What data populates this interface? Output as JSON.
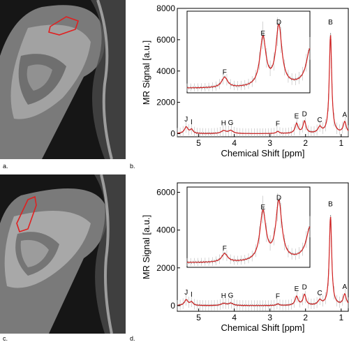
{
  "panels": {
    "a": {
      "label": "a."
    },
    "b": {
      "label": "b."
    },
    "c": {
      "label": "c."
    },
    "d": {
      "label": "d."
    }
  },
  "colors": {
    "fit": "#d21f1f",
    "data": "#777777",
    "roi": "#e02020"
  },
  "chart_data": [
    {
      "type": "line",
      "panel": "b",
      "xlabel": "Chemical Shift [ppm]",
      "ylabel": "MR Signal [a.u.]",
      "xlim": [
        5.6,
        0.8
      ],
      "ylim": [
        -200,
        8000
      ],
      "x_reversed": true,
      "xticks": [
        5,
        4,
        3,
        2,
        1
      ],
      "yticks": [
        0,
        2000,
        4000,
        6000,
        8000
      ],
      "grid": false,
      "peaks": [
        {
          "label": "J",
          "ppm": 5.35,
          "height": 420
        },
        {
          "label": "I",
          "ppm": 5.2,
          "height": 250
        },
        {
          "label": "H",
          "ppm": 4.3,
          "height": 180
        },
        {
          "label": "G",
          "ppm": 4.1,
          "height": 190
        },
        {
          "label": "F",
          "ppm": 2.78,
          "height": 130
        },
        {
          "label": "E",
          "ppm": 2.25,
          "height": 620
        },
        {
          "label": "D",
          "ppm": 2.03,
          "height": 760
        },
        {
          "label": "C",
          "ppm": 1.6,
          "height": 380
        },
        {
          "label": "B",
          "ppm": 1.3,
          "height": 6350
        },
        {
          "label": "A",
          "ppm": 0.9,
          "height": 720
        }
      ],
      "inset": {
        "peaks": [
          "F",
          "E",
          "D"
        ]
      }
    },
    {
      "type": "line",
      "panel": "d",
      "xlabel": "Chemical Shift [ppm]",
      "ylabel": "MR Signal [a.u.]",
      "xlim": [
        5.6,
        0.8
      ],
      "ylim": [
        -300,
        6500
      ],
      "x_reversed": true,
      "xticks": [
        5,
        4,
        3,
        2,
        1
      ],
      "yticks": [
        0,
        2000,
        4000,
        6000
      ],
      "grid": false,
      "peaks": [
        {
          "label": "J",
          "ppm": 5.35,
          "height": 300
        },
        {
          "label": "I",
          "ppm": 5.2,
          "height": 180
        },
        {
          "label": "H",
          "ppm": 4.3,
          "height": 110
        },
        {
          "label": "G",
          "ppm": 4.1,
          "height": 120
        },
        {
          "label": "F",
          "ppm": 2.78,
          "height": 80
        },
        {
          "label": "E",
          "ppm": 2.25,
          "height": 470
        },
        {
          "label": "D",
          "ppm": 2.03,
          "height": 560
        },
        {
          "label": "C",
          "ppm": 1.6,
          "height": 250
        },
        {
          "label": "B",
          "ppm": 1.3,
          "height": 4750
        },
        {
          "label": "A",
          "ppm": 0.9,
          "height": 580
        }
      ],
      "inset": {
        "peaks": [
          "F",
          "E",
          "D"
        ]
      }
    }
  ]
}
